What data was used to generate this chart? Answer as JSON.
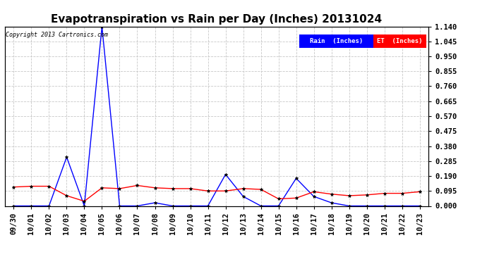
{
  "title": "Evapotranspiration vs Rain per Day (Inches) 20131024",
  "copyright": "Copyright 2013 Cartronics.com",
  "x_labels": [
    "09/30",
    "10/01",
    "10/02",
    "10/03",
    "10/04",
    "10/05",
    "10/06",
    "10/07",
    "10/08",
    "10/09",
    "10/10",
    "10/11",
    "10/12",
    "10/13",
    "10/14",
    "10/15",
    "10/16",
    "10/17",
    "10/18",
    "10/19",
    "10/20",
    "10/21",
    "10/22",
    "10/23"
  ],
  "rain_values": [
    0.0,
    0.0,
    0.0,
    0.31,
    0.0,
    1.14,
    0.0,
    0.0,
    0.02,
    0.0,
    0.0,
    0.0,
    0.2,
    0.06,
    0.0,
    0.0,
    0.175,
    0.06,
    0.02,
    0.0,
    0.0,
    0.0,
    0.0,
    0.0
  ],
  "et_values": [
    0.12,
    0.125,
    0.125,
    0.065,
    0.03,
    0.115,
    0.11,
    0.13,
    0.115,
    0.11,
    0.11,
    0.095,
    0.095,
    0.11,
    0.105,
    0.045,
    0.05,
    0.09,
    0.075,
    0.065,
    0.07,
    0.08,
    0.08,
    0.09
  ],
  "rain_color": "#0000ff",
  "et_color": "#ff0000",
  "ylim": [
    0.0,
    1.14
  ],
  "yticks": [
    0.0,
    0.095,
    0.19,
    0.285,
    0.38,
    0.475,
    0.57,
    0.665,
    0.76,
    0.855,
    0.95,
    1.045,
    1.14
  ],
  "bg_color": "#ffffff",
  "grid_color": "#c8c8c8",
  "title_fontsize": 11,
  "tick_fontsize": 7.5,
  "legend_rain_bg": "#0000ff",
  "legend_et_bg": "#ff0000",
  "legend_rain_text": "Rain  (Inches)",
  "legend_et_text": "ET  (Inches)"
}
